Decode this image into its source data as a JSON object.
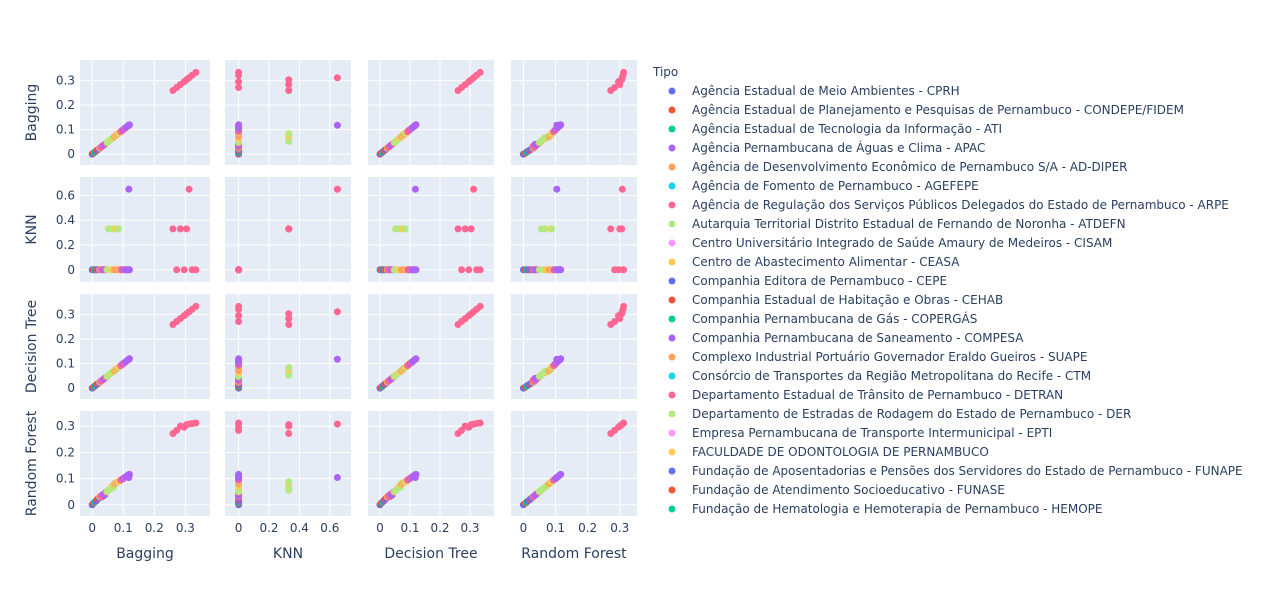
{
  "chart_data": {
    "type": "scatter",
    "subtype": "scatter_matrix",
    "dimensions": [
      "Bagging",
      "KNN",
      "Decision Tree",
      "Random Forest"
    ],
    "grid": true,
    "legend": {
      "title": "Tipo",
      "placement": "right",
      "entries": [
        {
          "name": "Agência Estadual de Meio Ambientes - CPRH",
          "color": "#636efa"
        },
        {
          "name": "Agência Estadual de Planejamento e Pesquisas de Pernambuco - CONDEPE/FIDEM",
          "color": "#EF553B"
        },
        {
          "name": "Agência Estadual de Tecnologia da Informação - ATI",
          "color": "#00cc96"
        },
        {
          "name": "Agência Pernambucana de Águas e Clima - APAC",
          "color": "#ab63fa"
        },
        {
          "name": "Agência de Desenvolvimento Econômico de Pernambuco S/A - AD-DIPER",
          "color": "#FFA15A"
        },
        {
          "name": "Agência de Fomento de Pernambuco - AGEFEPE",
          "color": "#19d3f3"
        },
        {
          "name": "Agência de Regulação dos Serviços Públicos Delegados do Estado de Pernambuco - ARPE",
          "color": "#FF6692"
        },
        {
          "name": "Autarquia Territorial Distrito Estadual de Fernando de Noronha - ATDEFN",
          "color": "#B6E880"
        },
        {
          "name": "Centro Universitário Integrado de Saúde Amaury de Medeiros - CISAM",
          "color": "#FF97FF"
        },
        {
          "name": "Centro de Abastecimento Alimentar - CEASA",
          "color": "#FECB52"
        },
        {
          "name": "Companhia Editora de Pernambuco - CEPE",
          "color": "#636efa"
        },
        {
          "name": "Companhia Estadual de Habitação e Obras - CEHAB",
          "color": "#EF553B"
        },
        {
          "name": "Companhia Pernambucana de Gás - COPERGÁS",
          "color": "#00cc96"
        },
        {
          "name": "Companhia Pernambucana de Saneamento - COMPESA",
          "color": "#ab63fa"
        },
        {
          "name": "Complexo Industrial Portuário Governador Eraldo Gueiros - SUAPE",
          "color": "#FFA15A"
        },
        {
          "name": "Consórcio de Transportes da Região Metropolitana do Recife - CTM",
          "color": "#19d3f3"
        },
        {
          "name": "Departamento Estadual de Trânsito de Pernambuco - DETRAN",
          "color": "#FF6692"
        },
        {
          "name": "Departamento de Estradas de Rodagem do Estado de Pernambuco - DER",
          "color": "#B6E880"
        },
        {
          "name": "Empresa Pernambucana de Transporte Intermunicipal - EPTI",
          "color": "#FF97FF"
        },
        {
          "name": "FACULDADE DE ODONTOLOGIA DE PERNAMBUCO",
          "color": "#FECB52"
        },
        {
          "name": "Fundação de Aposentadorias e Pensões dos Servidores do Estado de Pernambuco - FUNAPE",
          "color": "#636efa"
        },
        {
          "name": "Fundação de Atendimento Socioeducativo - FUNASE",
          "color": "#EF553B"
        },
        {
          "name": "Fundação de Hematologia e Hemoterapia de Pernambuco - HEMOPE",
          "color": "#00cc96"
        }
      ]
    },
    "axes": {
      "Bagging": {
        "range": [
          -0.02,
          0.36
        ],
        "ticks": [
          0,
          0.1,
          0.2,
          0.3
        ],
        "tick_labels": [
          "0",
          "0.1",
          "0.2",
          "0.3"
        ]
      },
      "KNN": {
        "range": [
          -0.05,
          0.7
        ],
        "ticks": [
          0,
          0.2,
          0.4,
          0.6
        ],
        "tick_labels": [
          "0",
          "0.2",
          "0.4",
          "0.6"
        ]
      },
      "Decision Tree": {
        "range": [
          -0.02,
          0.36
        ],
        "ticks": [
          0,
          0.1,
          0.2,
          0.3
        ],
        "tick_labels": [
          "0",
          "0.1",
          "0.2",
          "0.3"
        ]
      },
      "Random Forest": {
        "range": [
          -0.02,
          0.335
        ],
        "ticks": [
          0,
          0.1,
          0.2,
          0.3
        ],
        "tick_labels": [
          "0",
          "0.1",
          "0.2",
          "0.3"
        ]
      }
    },
    "points_note_values": "Each point lists values for [Bagging, KNN, Decision Tree, Random Forest]",
    "points": [
      {
        "c": 0,
        "v": [
          0.0,
          0.0,
          0.0,
          0.0
        ]
      },
      {
        "c": 1,
        "v": [
          0.004,
          0.0,
          0.004,
          0.006
        ]
      },
      {
        "c": 2,
        "v": [
          0.008,
          0.0,
          0.008,
          0.01
        ]
      },
      {
        "c": 10,
        "v": [
          0.012,
          0.0,
          0.012,
          0.014
        ]
      },
      {
        "c": 11,
        "v": [
          0.016,
          0.0,
          0.016,
          0.02
        ]
      },
      {
        "c": 0,
        "v": [
          0.02,
          0.0,
          0.02,
          0.024
        ]
      },
      {
        "c": 4,
        "v": [
          0.024,
          0.0,
          0.024,
          0.03
        ]
      },
      {
        "c": 6,
        "v": [
          0.028,
          0.0,
          0.028,
          0.034
        ]
      },
      {
        "c": 16,
        "v": [
          0.032,
          0.0,
          0.032,
          0.03
        ]
      },
      {
        "c": 3,
        "v": [
          0.036,
          0.0,
          0.036,
          0.04
        ]
      },
      {
        "c": 13,
        "v": [
          0.04,
          0.0,
          0.04,
          0.036
        ]
      },
      {
        "c": 6,
        "v": [
          0.044,
          0.0,
          0.044,
          0.048
        ]
      },
      {
        "c": 7,
        "v": [
          0.048,
          0.0,
          0.048,
          0.05
        ]
      },
      {
        "c": 17,
        "v": [
          0.052,
          0.33,
          0.052,
          0.056
        ]
      },
      {
        "c": 7,
        "v": [
          0.056,
          0.33,
          0.056,
          0.058
        ]
      },
      {
        "c": 17,
        "v": [
          0.06,
          0.0,
          0.06,
          0.062
        ]
      },
      {
        "c": 9,
        "v": [
          0.064,
          0.0,
          0.064,
          0.07
        ]
      },
      {
        "c": 7,
        "v": [
          0.068,
          0.33,
          0.068,
          0.066
        ]
      },
      {
        "c": 4,
        "v": [
          0.072,
          0.0,
          0.072,
          0.08
        ]
      },
      {
        "c": 19,
        "v": [
          0.076,
          0.33,
          0.076,
          0.084
        ]
      },
      {
        "c": 14,
        "v": [
          0.08,
          0.0,
          0.08,
          0.086
        ]
      },
      {
        "c": 7,
        "v": [
          0.084,
          0.33,
          0.084,
          0.088
        ]
      },
      {
        "c": 9,
        "v": [
          0.088,
          0.0,
          0.088,
          0.09
        ]
      },
      {
        "c": 6,
        "v": [
          0.092,
          0.0,
          0.092,
          0.094
        ]
      },
      {
        "c": 16,
        "v": [
          0.096,
          0.0,
          0.096,
          0.098
        ]
      },
      {
        "c": 3,
        "v": [
          0.1,
          0.0,
          0.1,
          0.1
        ]
      },
      {
        "c": 6,
        "v": [
          0.104,
          0.0,
          0.104,
          0.104
        ]
      },
      {
        "c": 13,
        "v": [
          0.108,
          0.0,
          0.108,
          0.106
        ]
      },
      {
        "c": 3,
        "v": [
          0.112,
          0.0,
          0.112,
          0.11
        ]
      },
      {
        "c": 13,
        "v": [
          0.116,
          0.0,
          0.116,
          0.114
        ]
      },
      {
        "c": 3,
        "v": [
          0.12,
          0.0,
          0.12,
          0.116
        ]
      },
      {
        "c": 3,
        "v": [
          0.118,
          0.65,
          0.118,
          0.104
        ]
      },
      {
        "c": 6,
        "v": [
          0.26,
          0.33,
          0.26,
          0.272
        ]
      },
      {
        "c": 6,
        "v": [
          0.272,
          0.0,
          0.272,
          0.284
        ]
      },
      {
        "c": 16,
        "v": [
          0.284,
          0.33,
          0.284,
          0.3
        ]
      },
      {
        "c": 6,
        "v": [
          0.296,
          0.0,
          0.296,
          0.296
        ]
      },
      {
        "c": 16,
        "v": [
          0.304,
          0.33,
          0.304,
          0.306
        ]
      },
      {
        "c": 6,
        "v": [
          0.312,
          0.65,
          0.312,
          0.308
        ]
      },
      {
        "c": 16,
        "v": [
          0.322,
          0.0,
          0.322,
          0.31
        ]
      },
      {
        "c": 6,
        "v": [
          0.334,
          0.0,
          0.334,
          0.312
        ]
      }
    ]
  }
}
